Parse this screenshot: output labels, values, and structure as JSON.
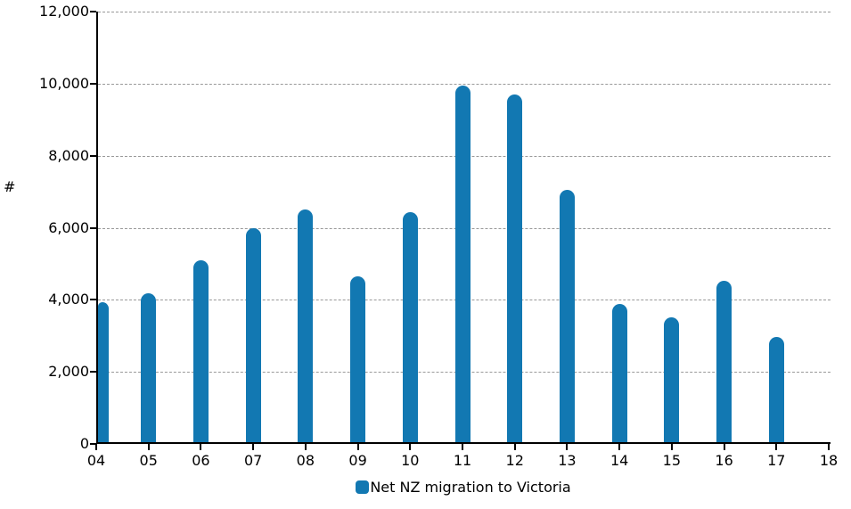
{
  "chart_data": {
    "type": "bar",
    "title": "",
    "xlabel": "",
    "ylabel": "#",
    "categories": [
      "04",
      "05",
      "06",
      "07",
      "08",
      "09",
      "10",
      "11",
      "12",
      "13",
      "14",
      "15",
      "16",
      "17"
    ],
    "values": [
      3890,
      4120,
      5060,
      5950,
      6460,
      4610,
      6380,
      9890,
      9640,
      7000,
      3840,
      3470,
      4480,
      2920
    ],
    "series": [
      {
        "name": "Net NZ migration to Victoria",
        "values": [
          3890,
          4120,
          5060,
          5950,
          6460,
          4610,
          6380,
          9890,
          9640,
          7000,
          3840,
          3470,
          4480,
          2920
        ]
      }
    ],
    "x_axis_tick_labels": [
      "04",
      "05",
      "06",
      "07",
      "08",
      "09",
      "10",
      "11",
      "12",
      "13",
      "14",
      "15",
      "16",
      "17",
      "18"
    ],
    "y_axis_tick_labels": [
      "0",
      "2,000",
      "4,000",
      "6,000",
      "8,000",
      "10,000",
      "12,000"
    ],
    "y_ticks": [
      0,
      2000,
      4000,
      6000,
      8000,
      10000,
      12000
    ],
    "ylim": [
      0,
      12000
    ],
    "grid": "horizontal-dashed",
    "legend_position": "bottom-center",
    "legend_label": "Net NZ migration to Victoria",
    "bar_color": "#1278b2",
    "grid_color": "#999999",
    "axis_color": "#000000"
  }
}
